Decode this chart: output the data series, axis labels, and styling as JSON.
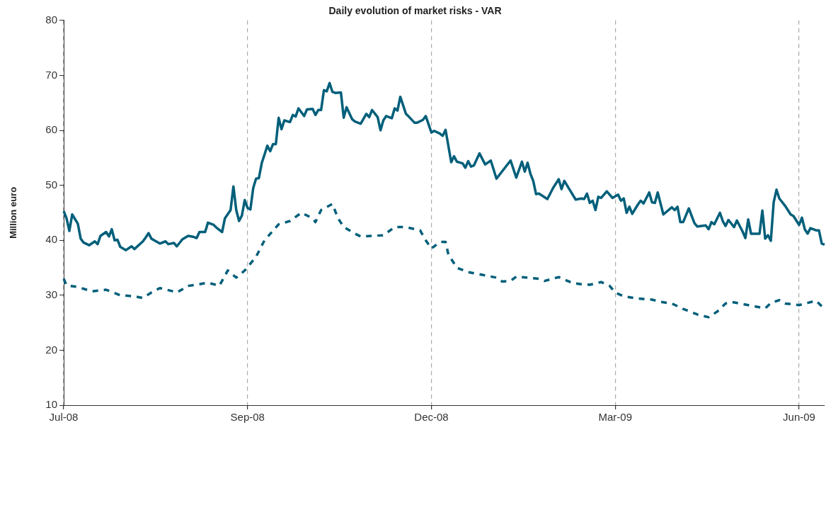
{
  "chart_data": {
    "type": "line",
    "title": "Daily evolution of market risks - VAR",
    "ylabel": "Million euro",
    "ylim": [
      10,
      80
    ],
    "yticks": [
      10,
      20,
      30,
      40,
      50,
      60,
      70,
      80
    ],
    "grid": "x",
    "legend": false,
    "marker": "none",
    "categories": [
      "Jul-08",
      null,
      null,
      null,
      null,
      null,
      null,
      null,
      null,
      null,
      null,
      null,
      null,
      null,
      null,
      null,
      null,
      null,
      null,
      null,
      null,
      null,
      null,
      null,
      null,
      null,
      null,
      null,
      null,
      null,
      null,
      null,
      null,
      null,
      null,
      null,
      null,
      null,
      null,
      null,
      null,
      null,
      null,
      null,
      null,
      null,
      null,
      null,
      null,
      null,
      null,
      null,
      null,
      null,
      null,
      null,
      null,
      null,
      null,
      null,
      null,
      null,
      null,
      null,
      null,
      "Sep-08",
      null,
      null,
      null,
      null,
      null,
      null,
      null,
      null,
      null,
      null,
      null,
      null,
      null,
      null,
      null,
      null,
      null,
      null,
      null,
      null,
      null,
      null,
      null,
      null,
      null,
      null,
      null,
      null,
      null,
      null,
      null,
      null,
      null,
      null,
      null,
      null,
      null,
      null,
      null,
      null,
      null,
      null,
      null,
      null,
      null,
      null,
      null,
      null,
      null,
      null,
      null,
      null,
      null,
      null,
      null,
      null,
      null,
      null,
      null,
      null,
      null,
      null,
      null,
      null,
      "Dec-08",
      null,
      null,
      null,
      null,
      null,
      null,
      null,
      null,
      null,
      null,
      null,
      null,
      null,
      null,
      null,
      null,
      null,
      null,
      null,
      null,
      null,
      null,
      null,
      null,
      null,
      null,
      null,
      null,
      null,
      null,
      null,
      null,
      null,
      null,
      null,
      null,
      null,
      null,
      null,
      null,
      null,
      null,
      null,
      null,
      null,
      null,
      null,
      null,
      null,
      null,
      null,
      null,
      null,
      null,
      null,
      null,
      null,
      null,
      null,
      null,
      null,
      null,
      null,
      null,
      "Mar-09",
      null,
      null,
      null,
      null,
      null,
      null,
      null,
      null,
      null,
      null,
      null,
      null,
      null,
      null,
      null,
      null,
      null,
      null,
      null,
      null,
      null,
      null,
      null,
      null,
      null,
      null,
      null,
      null,
      null,
      null,
      null,
      null,
      null,
      null,
      null,
      null,
      null,
      null,
      null,
      null,
      null,
      null,
      null,
      null,
      null,
      null,
      null,
      null,
      null,
      null,
      null,
      null,
      null,
      null,
      null,
      null,
      null,
      null,
      null,
      null,
      null,
      null,
      null,
      null,
      "Jun-09",
      null,
      null,
      null,
      null,
      null,
      null,
      null,
      null,
      null
    ],
    "series": [
      {
        "color": "#005f7a",
        "line_style": "solid",
        "values": [
          45.3,
          44,
          41.7,
          44.7,
          null,
          43,
          40.3,
          39.6,
          null,
          39.1,
          null,
          39.8,
          39.3,
          40.8,
          null,
          41.5,
          40.7,
          42,
          40,
          40.1,
          38.8,
          null,
          38.2,
          null,
          38.9,
          38.4,
          null,
          null,
          39.8,
          40.5,
          41.3,
          40.3,
          40,
          null,
          39.4,
          null,
          39.8,
          39.3,
          null,
          39.5,
          38.9,
          null,
          40.2,
          null,
          40.8,
          null,
          40.6,
          40.4,
          41.5,
          null,
          41.5,
          43.2,
          null,
          42.8,
          42.3,
          null,
          41.5,
          44,
          null,
          45.5,
          49.8,
          45.5,
          43.5,
          44.5,
          47.3,
          45.9,
          45.6,
          49.5,
          51.2,
          51.3,
          54,
          null,
          57.2,
          56.2,
          57.5,
          57.5,
          62.3,
          60.2,
          61.8,
          null,
          61.5,
          62.8,
          62.5,
          64,
          null,
          62.6,
          63.8,
          null,
          63.9,
          62.8,
          63.7,
          63.7,
          67.3,
          67.1,
          68.6,
          67,
          66.8,
          null,
          66.9,
          62.3,
          64.2,
          null,
          62,
          61.6,
          null,
          61.2,
          null,
          63,
          62.4,
          63.7,
          null,
          62.4,
          60,
          61.8,
          62.6,
          null,
          62.2,
          64,
          63.6,
          66.1,
          null,
          63,
          62.5,
          null,
          61.4,
          61.4,
          null,
          61.9,
          62.6,
          null,
          59.6,
          59.9,
          null,
          59.4,
          59,
          60.1,
          null,
          54.2,
          55.3,
          54.3,
          null,
          54,
          53.2,
          54.4,
          53.4,
          53.6,
          null,
          55.8,
          null,
          53.8,
          null,
          54.5,
          null,
          51.2,
          null,
          null,
          53.2,
          null,
          54.5,
          null,
          51.4,
          null,
          54.3,
          52.5,
          54.1,
          52.1,
          50.8,
          48.4,
          48.5,
          null,
          null,
          47.5,
          null,
          49.5,
          null,
          51.1,
          49.3,
          50.8,
          null,
          49.1,
          null,
          47.4,
          null,
          47.6,
          47.5,
          48.5,
          46.8,
          47.2,
          45.5,
          47.9,
          47.7,
          null,
          48.9,
          null,
          47.7,
          null,
          48.3,
          47.2,
          47.6,
          45,
          46.1,
          44.8,
          null,
          46.5,
          47.2,
          46.7,
          null,
          48.7,
          46.9,
          46.8,
          48.7,
          null,
          44.7,
          null,
          null,
          46,
          45.5,
          46.1,
          43.3,
          43.3,
          null,
          45.8,
          null,
          43.1,
          42.5,
          null,
          null,
          42.7,
          42,
          43.3,
          42.9,
          null,
          45,
          43.5,
          42.6,
          43.7,
          null,
          42.4,
          43.6,
          null,
          41.6,
          40.4,
          43.8,
          41.2,
          null,
          null,
          41.2,
          45.4,
          40.3,
          40.9,
          39.9,
          46.9,
          49.2,
          47.6,
          null,
          46.3,
          null,
          44.7,
          44.4,
          null,
          42.8,
          44.1,
          42,
          41.2,
          42.2,
          null,
          41.8,
          41.8,
          39.4,
          39.2
        ]
      },
      {
        "color": "#005f7a",
        "line_style": "dashed",
        "values": [
          33,
          31.8,
          null,
          null,
          null,
          31.5,
          null,
          null,
          null,
          null,
          30.7,
          null,
          null,
          null,
          null,
          31,
          null,
          null,
          null,
          null,
          30,
          null,
          null,
          null,
          null,
          29.8,
          null,
          null,
          29.5,
          null,
          null,
          30.5,
          null,
          null,
          31.3,
          null,
          null,
          null,
          30.8,
          null,
          30.5,
          null,
          null,
          null,
          31.7,
          null,
          null,
          null,
          32,
          null,
          null,
          32.3,
          null,
          null,
          null,
          31.7,
          null,
          null,
          34.5,
          null,
          null,
          33.2,
          null,
          null,
          34.5,
          null,
          null,
          null,
          37,
          null,
          null,
          40,
          null,
          null,
          null,
          null,
          42.9,
          null,
          null,
          null,
          43.5,
          null,
          null,
          null,
          45,
          null,
          null,
          null,
          44,
          43.3,
          null,
          45.5,
          null,
          null,
          null,
          46.6,
          null,
          44,
          null,
          42.4,
          null,
          null,
          null,
          41.2,
          null,
          40.7,
          null,
          null,
          null,
          40.8,
          null,
          null,
          null,
          40.9,
          null,
          null,
          null,
          42.4,
          null,
          null,
          null,
          42.4,
          null,
          null,
          null,
          null,
          41.8,
          null,
          40,
          null,
          38.5,
          null,
          null,
          39.7,
          null,
          39.7,
          37.4,
          null,
          null,
          35,
          null,
          null,
          null,
          34.2,
          null,
          null,
          null,
          null,
          33.7,
          null,
          33.5,
          null,
          null,
          33.2,
          null,
          32.5,
          null,
          null,
          32.6,
          null,
          33.4,
          null,
          null,
          null,
          33.2,
          null,
          null,
          null,
          33,
          null,
          32.6,
          null,
          null,
          null,
          null,
          33.3,
          null,
          null,
          null,
          null,
          32.2,
          null,
          null,
          32,
          null,
          null,
          31.9,
          null,
          null,
          null,
          32.4,
          null,
          null,
          31.7,
          null,
          30.5,
          null,
          null,
          29.8,
          null,
          null,
          null,
          null,
          29.4,
          null,
          null,
          null,
          null,
          29.2,
          null,
          null,
          28.8,
          null,
          null,
          null,
          28.5,
          null,
          null,
          null,
          27.5,
          null,
          null,
          null,
          null,
          26.5,
          null,
          null,
          null,
          26,
          null,
          null,
          27,
          null,
          null,
          28.5,
          null,
          28.8,
          null,
          null,
          null,
          28.4,
          null,
          null,
          null,
          28,
          null,
          null,
          null,
          27.6,
          null,
          28.6,
          null,
          null,
          29.1,
          null,
          28.5,
          null,
          null,
          null,
          null,
          28.2,
          null,
          null,
          28.6,
          null,
          null,
          29,
          null,
          null,
          27.5
        ]
      }
    ]
  }
}
